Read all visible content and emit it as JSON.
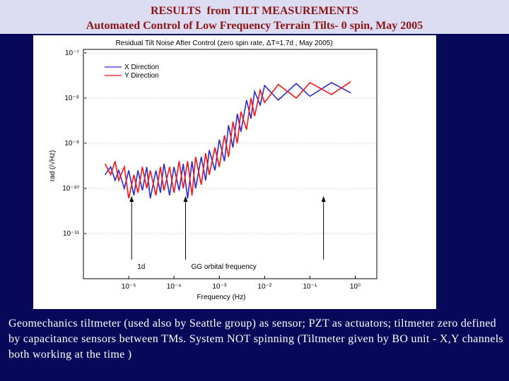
{
  "header": {
    "title": "RESULTS  from TILT MEASUREMENTS",
    "subtitle": "Automated Control of Low Frequency Terrain Tilts- 0 spin, May 2005"
  },
  "chart_data": {
    "type": "line",
    "title": "Residual Tilt Noise After Control (zero spin rate, ΔT=1.7d ,  May 2005)",
    "x_label": "Frequency (Hz)",
    "y_label": "rad (/√Hz)",
    "log_x": true,
    "log_y": true,
    "xlim": [
      1e-06,
      3
    ],
    "ylim": [
      1e-12,
      1e-07
    ],
    "xticks": [
      {
        "value": 1e-05,
        "label": "10⁻⁵"
      },
      {
        "value": 0.0001,
        "label": "10⁻⁴"
      },
      {
        "value": 0.001,
        "label": "10⁻³"
      },
      {
        "value": 0.01,
        "label": "10⁻²"
      },
      {
        "value": 0.1,
        "label": "10⁻¹"
      },
      {
        "value": 1,
        "label": "10⁰"
      }
    ],
    "yticks": [
      {
        "value": 1e-07,
        "label": "10⁻⁷"
      },
      {
        "value": 1e-08,
        "label": "10⁻⁸"
      },
      {
        "value": 1e-09,
        "label": "10⁻⁹"
      },
      {
        "value": 1e-10,
        "label": "10⁻¹⁰"
      },
      {
        "value": 1e-11,
        "label": "10⁻¹¹"
      }
    ],
    "x": [
      3e-06,
      4e-06,
      5e-06,
      6e-06,
      8e-06,
      1e-05,
      1.3e-05,
      1.6e-05,
      2e-05,
      2.5e-05,
      3e-05,
      4e-05,
      5e-05,
      6e-05,
      8e-05,
      0.0001,
      0.00013,
      0.00016,
      0.0002,
      0.00025,
      0.0003,
      0.0004,
      0.0005,
      0.0006,
      0.0008,
      0.001,
      0.0013,
      0.0016,
      0.002,
      0.0025,
      0.003,
      0.004,
      0.005,
      0.006,
      0.008,
      0.01,
      0.02,
      0.05,
      0.1,
      0.3,
      0.8
    ],
    "legend": "upper left",
    "series": [
      {
        "name": "X Direction",
        "color": "#2a2ad0",
        "values": [
          2e-10,
          3e-10,
          1.5e-10,
          2.5e-10,
          1e-10,
          2.5e-10,
          7e-11,
          2.5e-10,
          9e-11,
          3e-10,
          6e-11,
          2.5e-10,
          8e-11,
          3.5e-10,
          7e-11,
          3e-10,
          9e-11,
          3.5e-10,
          6e-11,
          4e-10,
          1e-10,
          5e-10,
          1.5e-10,
          7e-10,
          2.5e-10,
          1.2e-09,
          4e-10,
          2.5e-09,
          8e-10,
          4.5e-09,
          1.8e-09,
          9e-09,
          3.5e-09,
          1.4e-08,
          7e-09,
          1.9e-08,
          9e-09,
          2.1e-08,
          1.1e-08,
          2.2e-08,
          1.3e-08
        ]
      },
      {
        "name": "Y Direction",
        "color": "#ff1010",
        "values": [
          3.5e-10,
          2e-10,
          4e-10,
          1.5e-10,
          3e-10,
          6e-11,
          2e-10,
          8e-11,
          3e-10,
          1e-10,
          2.5e-10,
          7e-11,
          3e-10,
          9e-11,
          3e-10,
          8e-11,
          4e-10,
          1e-10,
          4e-10,
          7e-11,
          5e-10,
          1.2e-10,
          6e-10,
          2e-10,
          8e-10,
          3e-10,
          1.5e-09,
          5e-10,
          3e-09,
          1e-09,
          5e-09,
          2e-09,
          1e-08,
          4e-09,
          1.5e-08,
          8e-09,
          2e-08,
          1e-08,
          2.2e-08,
          1.2e-08,
          2.3e-08
        ]
      }
    ],
    "annotations": [
      {
        "text": "1d",
        "x": 1.16e-05
      },
      {
        "text": "GG orbital frequency",
        "x": 0.00018
      }
    ]
  },
  "body_text": "Geomechanics tiltmeter (used also by Seattle group) as sensor; PZT as actuators; tiltmeter zero defined by capacitance sensors between TMs. System NOT spinning (Tiltmeter given by BO unit - X,Y channels both working at the time )"
}
